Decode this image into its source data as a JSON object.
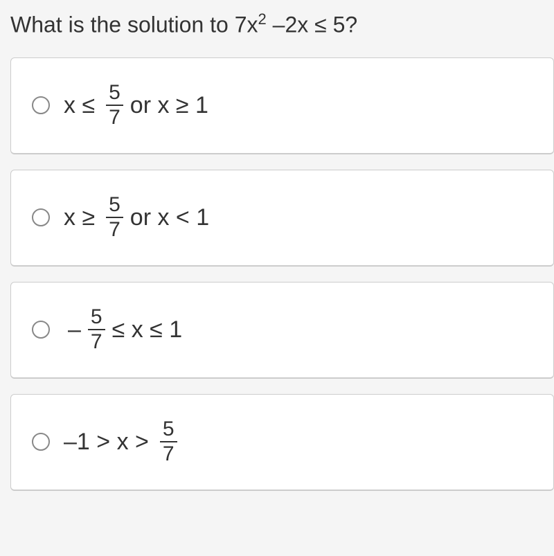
{
  "question": {
    "prefix": "What is the solution to 7x",
    "exponent": "2",
    "suffix": " –2x ≤ 5?"
  },
  "options": [
    {
      "id": "option-a",
      "before_frac": "x ≤ ",
      "neg": "",
      "num": "5",
      "den": "7",
      "after_frac": " or x ≥ 1"
    },
    {
      "id": "option-b",
      "before_frac": "x ≥ ",
      "neg": "",
      "num": "5",
      "den": "7",
      "after_frac": " or x < 1"
    },
    {
      "id": "option-c",
      "before_frac": "",
      "neg": "– ",
      "num": "5",
      "den": "7",
      "after_frac": " ≤ x ≤ 1"
    },
    {
      "id": "option-d",
      "before_frac": "–1 > x > ",
      "neg": "",
      "num": "5",
      "den": "7",
      "after_frac": ""
    }
  ],
  "styling": {
    "background_color": "#f5f5f5",
    "option_background": "#ffffff",
    "option_border": "#cccccc",
    "text_color": "#333333",
    "radio_border": "#888888",
    "question_fontsize": 32,
    "answer_fontsize": 34,
    "fraction_fontsize": 30
  }
}
